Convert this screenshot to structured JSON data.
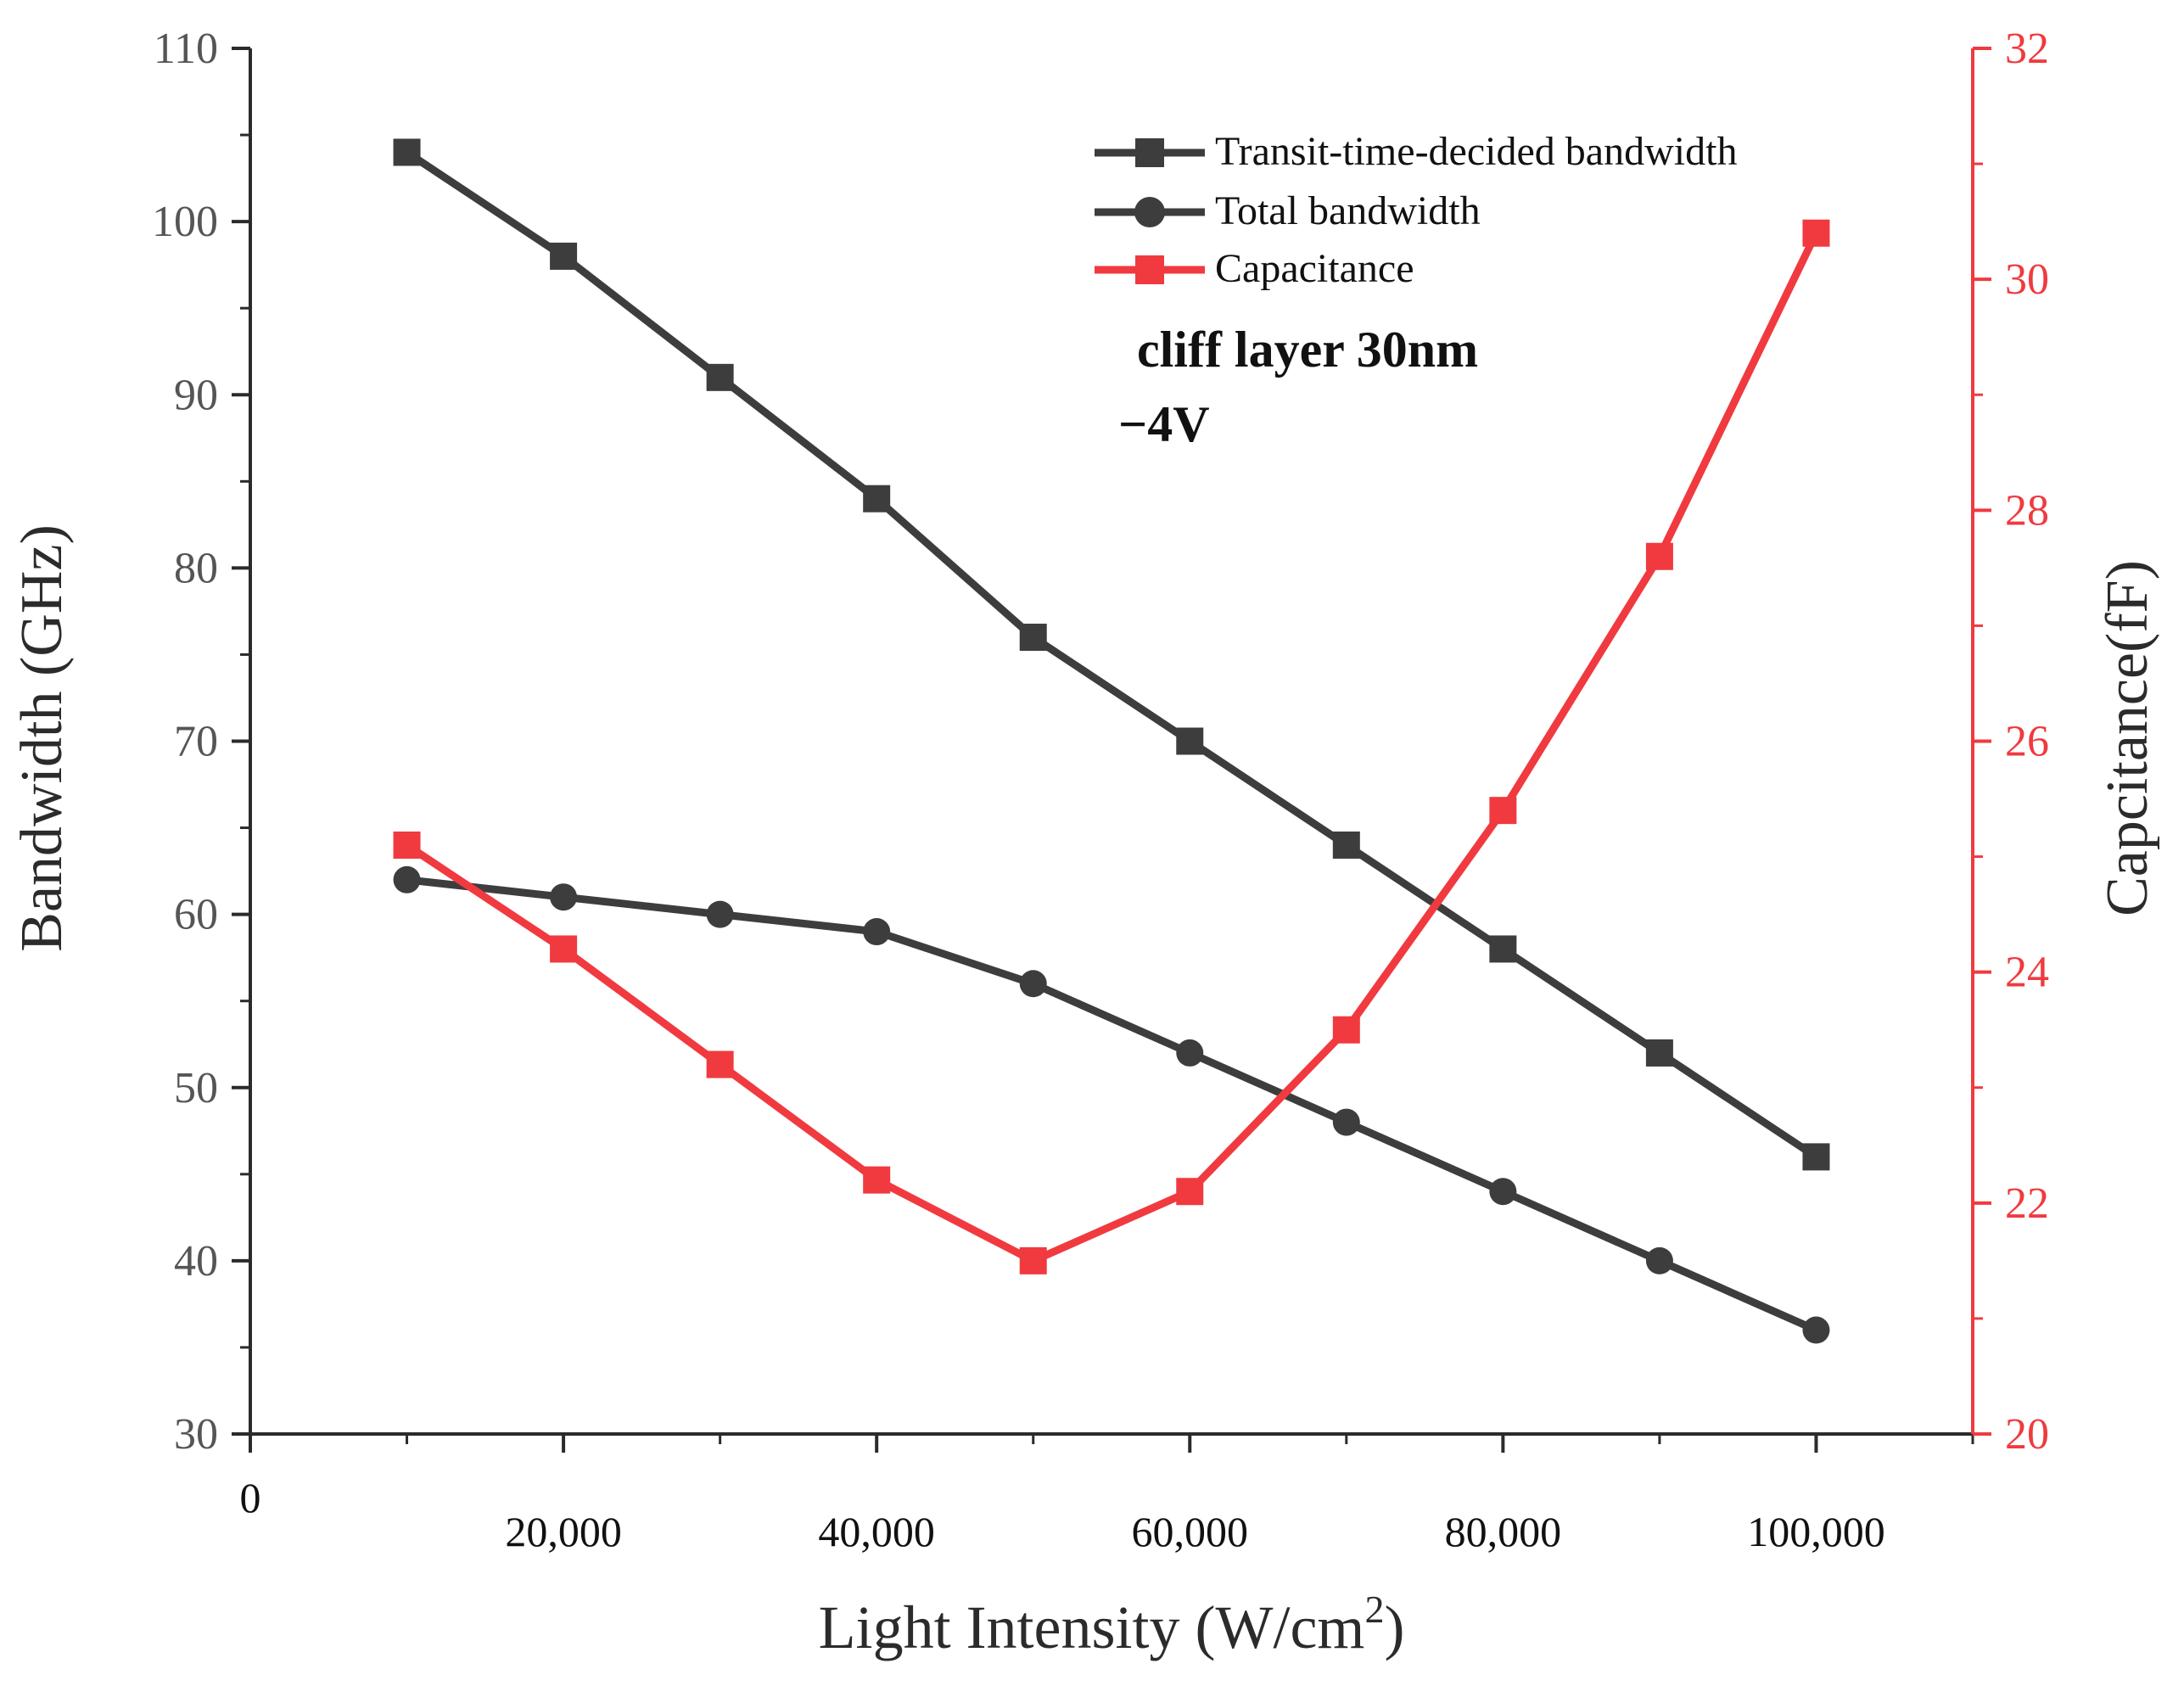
{
  "chart_data": {
    "type": "line",
    "title": "",
    "xlabel": "Light Intensity (W/cm",
    "xlabel_sup": "2",
    "xlabel_close": ")",
    "ylabel": "Bandwidth (GHz)",
    "y2label": "Capcitance(fF)",
    "xlim": [
      0,
      110000
    ],
    "ylim": [
      30,
      110
    ],
    "y2lim": [
      20,
      32
    ],
    "x_ticks": [
      0,
      20000,
      40000,
      60000,
      80000,
      100000
    ],
    "x_tick_labels": [
      "0",
      "20,000",
      "40,000",
      "60,000",
      "80,000",
      "100,000"
    ],
    "y_ticks": [
      30,
      40,
      50,
      60,
      70,
      80,
      90,
      100,
      110
    ],
    "y_tick_labels": [
      "30",
      "40",
      "50",
      "60",
      "70",
      "80",
      "90",
      "100",
      "110"
    ],
    "y2_ticks": [
      20,
      22,
      24,
      26,
      28,
      30,
      32
    ],
    "y2_tick_labels": [
      "20",
      "22",
      "24",
      "26",
      "28",
      "30",
      "32"
    ],
    "annotations": [
      "cliff layer 30nm",
      "−4V"
    ],
    "legend_position": "top-right",
    "x": [
      10000,
      20000,
      30000,
      40000,
      50000,
      60000,
      70000,
      80000,
      90000,
      100000
    ],
    "series": [
      {
        "name": "Transit-time-decided bandwidth",
        "axis": "left",
        "marker": "square",
        "color": "#3d3d3d",
        "values": [
          104,
          98,
          91,
          84,
          76,
          70,
          64,
          58,
          52,
          46
        ]
      },
      {
        "name": "Total bandwidth",
        "axis": "left",
        "marker": "circle",
        "color": "#3d3d3d",
        "values": [
          62,
          61,
          60,
          59,
          56,
          52,
          48,
          44,
          40,
          36
        ]
      },
      {
        "name": "Capacitance",
        "axis": "right",
        "marker": "square",
        "color": "#f03a3f",
        "values": [
          25.1,
          24.2,
          23.2,
          22.2,
          21.5,
          22.1,
          23.5,
          25.4,
          27.6,
          30.4
        ]
      }
    ]
  },
  "colors": {
    "axis": "#2b2b2b",
    "tick_label_left": "#555555",
    "right_axis": "#f03a3f"
  }
}
